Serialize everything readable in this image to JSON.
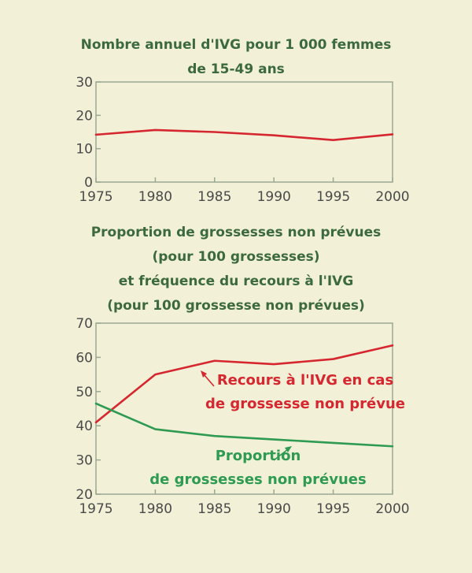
{
  "chart_data": [
    {
      "type": "line",
      "title": "Nombre annuel d'IVG pour 1 000 femmes\nde 15-49 ans",
      "x": [
        1975,
        1980,
        1985,
        1990,
        1995,
        2000
      ],
      "xticks": [
        "1975",
        "1980",
        "1985",
        "1990",
        "1995",
        "2000"
      ],
      "yticks": [
        "0",
        "10",
        "20",
        "30"
      ],
      "ylim": [
        0,
        30
      ],
      "xlim": [
        1975,
        2000
      ],
      "grid": false,
      "series": [
        {
          "values": [
            14.2,
            15.6,
            15.0,
            14.0,
            12.6,
            14.3
          ],
          "color": "#d6262f"
        }
      ]
    },
    {
      "type": "line",
      "title": "Proportion de grossesses non prévues\n(pour 100 grossesses)\net fréquence du recours à l'IVG\n(pour 100 grossesse non prévues)",
      "x": [
        1975,
        1980,
        1985,
        1990,
        1995,
        2000
      ],
      "xticks": [
        "1975",
        "1980",
        "1985",
        "1990",
        "1995",
        "2000"
      ],
      "yticks": [
        "20",
        "30",
        "40",
        "50",
        "60",
        "70"
      ],
      "ylim": [
        20,
        70
      ],
      "xlim": [
        1975,
        2000
      ],
      "grid": false,
      "series": [
        {
          "name": "Recours à l'IVG en cas de grossesse non prévue",
          "values": [
            41,
            55,
            59,
            58,
            59.5,
            63.5
          ],
          "color": "#d6262f"
        },
        {
          "name": "Proportion de grossesses non prévues",
          "values": [
            46.5,
            39,
            37,
            36,
            35,
            34
          ],
          "color": "#2e9a52"
        }
      ],
      "annotations": [
        {
          "lines": [
            "Recours à l'IVG en cas",
            "de grossesse non prévue"
          ],
          "color": "#d6262f"
        },
        {
          "lines": [
            "Proportion",
            "de grossesses non prévues"
          ],
          "color": "#2e9a52"
        }
      ]
    }
  ]
}
